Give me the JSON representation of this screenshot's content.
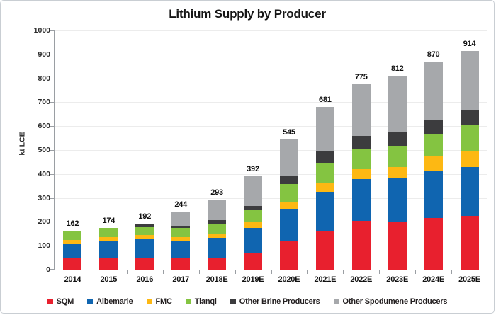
{
  "title": "Lithium Supply by Producer",
  "y_axis_label": "kt LCE",
  "chart_data": {
    "type": "bar",
    "stacked": true,
    "title": "Lithium Supply by Producer",
    "xlabel": "",
    "ylabel": "kt LCE",
    "ylim": [
      0,
      1000
    ],
    "ytick_step": 100,
    "grid": true,
    "legend_position": "bottom",
    "categories": [
      "2014",
      "2015",
      "2016",
      "2017",
      "2018E",
      "2019E",
      "2020E",
      "2021E",
      "2022E",
      "2023E",
      "2024E",
      "2025E"
    ],
    "totals": [
      162,
      174,
      192,
      244,
      293,
      392,
      545,
      681,
      775,
      812,
      870,
      914
    ],
    "series": [
      {
        "name": "SQM",
        "color": "#e8202e",
        "values": [
          50,
          48,
          49,
          49,
          47,
          70,
          117,
          161,
          203,
          202,
          217,
          225
        ]
      },
      {
        "name": "Albemarle",
        "color": "#1065b0",
        "values": [
          57,
          70,
          80,
          71,
          87,
          106,
          137,
          166,
          175,
          182,
          196,
          205
        ]
      },
      {
        "name": "FMC",
        "color": "#fdb813",
        "values": [
          16,
          17,
          16,
          16,
          16,
          21,
          30,
          35,
          43,
          44,
          64,
          63
        ]
      },
      {
        "name": "Tianqi",
        "color": "#84c441",
        "values": [
          39,
          39,
          37,
          38,
          41,
          54,
          74,
          84,
          85,
          91,
          90,
          113
        ]
      },
      {
        "name": "Other Brine Producers",
        "color": "#3c3c3e",
        "values": [
          0,
          0,
          10,
          11,
          16,
          15,
          34,
          50,
          53,
          57,
          61,
          63
        ]
      },
      {
        "name": "Other Spodumene Producers",
        "color": "#a6a8ab",
        "values": [
          0,
          0,
          0,
          59,
          86,
          126,
          153,
          185,
          216,
          236,
          242,
          245
        ]
      }
    ]
  },
  "style": {
    "gridline_color": "#ececec",
    "axis_color": "#9a9ea3",
    "frame_border_color": "#c9ced3",
    "background": "#ffffff"
  }
}
